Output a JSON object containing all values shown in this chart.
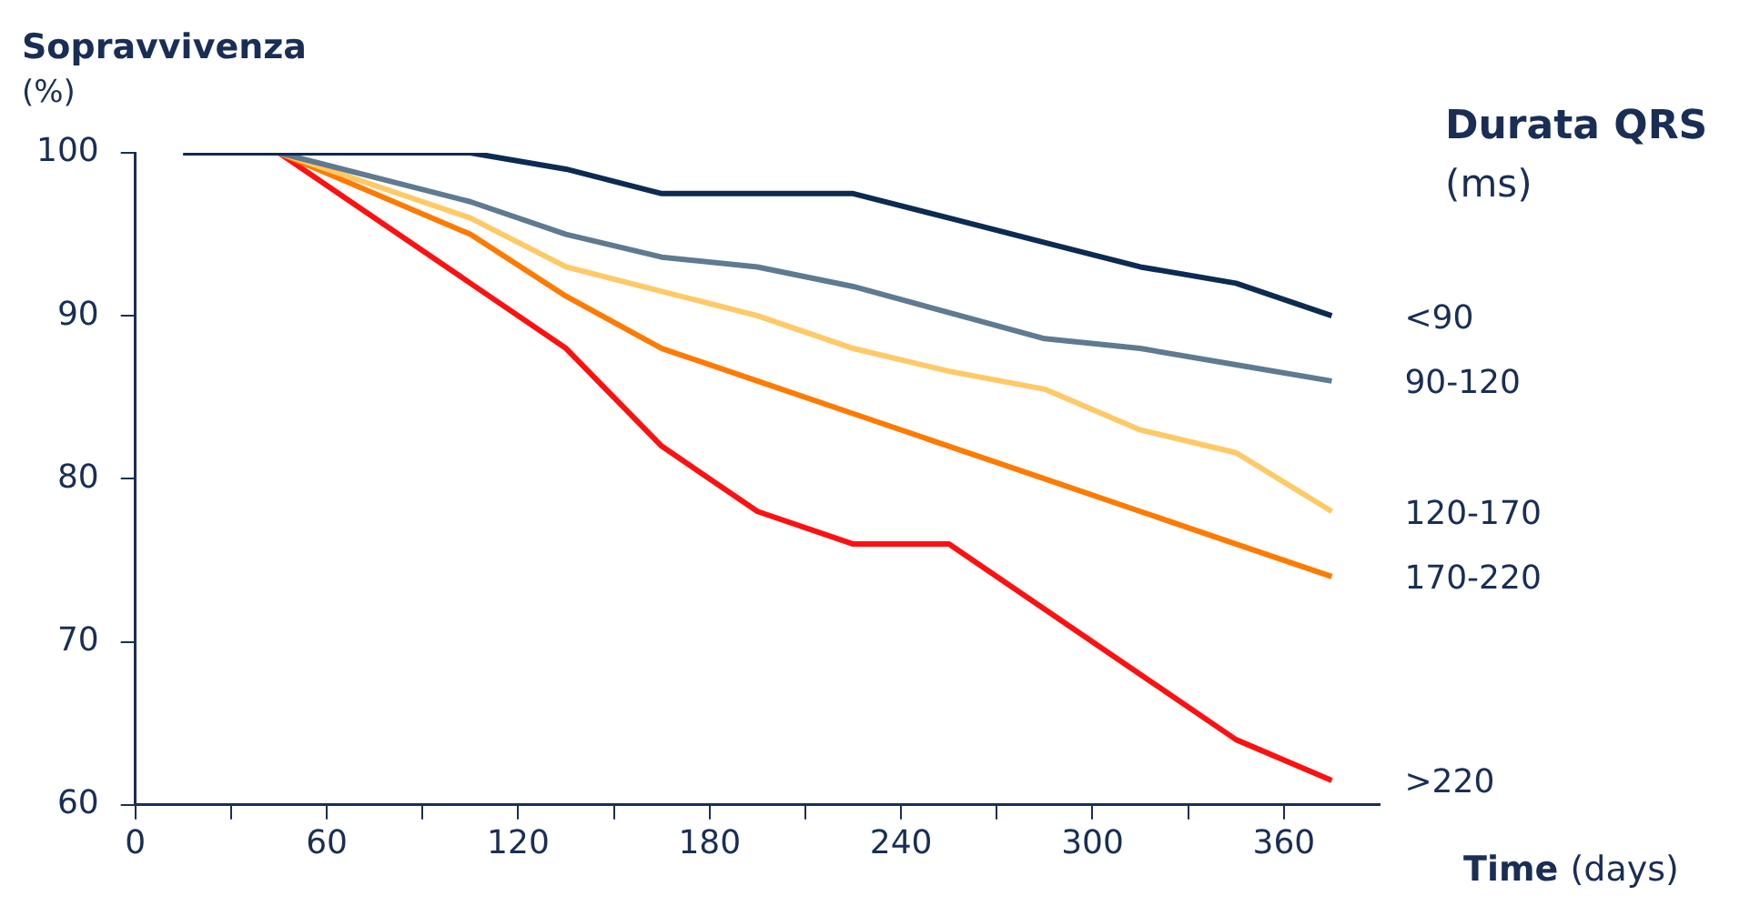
{
  "chart_data": {
    "type": "line",
    "ylabel": "Sopravvivenza (%)",
    "xlabel": "Time (days)",
    "legend_title": "Durata QRS (ms)",
    "x": [
      15,
      45,
      105,
      135,
      165,
      195,
      225,
      255,
      285,
      315,
      345,
      375
    ],
    "series": [
      {
        "name": "<90",
        "color": "#0d2b52",
        "values": [
          100,
          100,
          100,
          99,
          97.5,
          97.5,
          97.5,
          96,
          94.5,
          93,
          92,
          90
        ]
      },
      {
        "name": "90-120",
        "color": "#5f7a91",
        "values": [
          100,
          100,
          97,
          95,
          93.6,
          93,
          91.8,
          90.2,
          88.6,
          88,
          87,
          86
        ]
      },
      {
        "name": "120-170",
        "color": "#ffc966",
        "values": [
          100,
          100,
          96,
          93,
          91.5,
          90,
          88,
          86.6,
          85.5,
          83,
          81.6,
          78
        ]
      },
      {
        "name": "170-220",
        "color": "#ff7a00",
        "values": [
          100,
          100,
          95,
          91.2,
          88,
          86,
          84,
          82,
          80,
          78,
          76,
          74
        ]
      },
      {
        "name": ">220",
        "color": "#ff1010",
        "values": [
          100,
          100,
          92,
          88,
          82,
          78,
          76,
          76,
          72,
          68,
          64,
          61.5
        ]
      }
    ],
    "xlim": [
      0,
      390
    ],
    "xticks": [
      0,
      {
        "value": 30,
        "label": null
      },
      60,
      {
        "value": 90,
        "label": null
      },
      120,
      {
        "value": 150,
        "label": null
      },
      180,
      {
        "value": 210,
        "label": null
      },
      240,
      {
        "value": 270,
        "label": null
      },
      300,
      {
        "value": 330,
        "label": null
      },
      360
    ],
    "ylim": [
      60,
      100
    ],
    "yticks": [
      60,
      70,
      80,
      90,
      100
    ],
    "grid": false,
    "legend": "right",
    "marker": "none",
    "line_style": "solid"
  }
}
